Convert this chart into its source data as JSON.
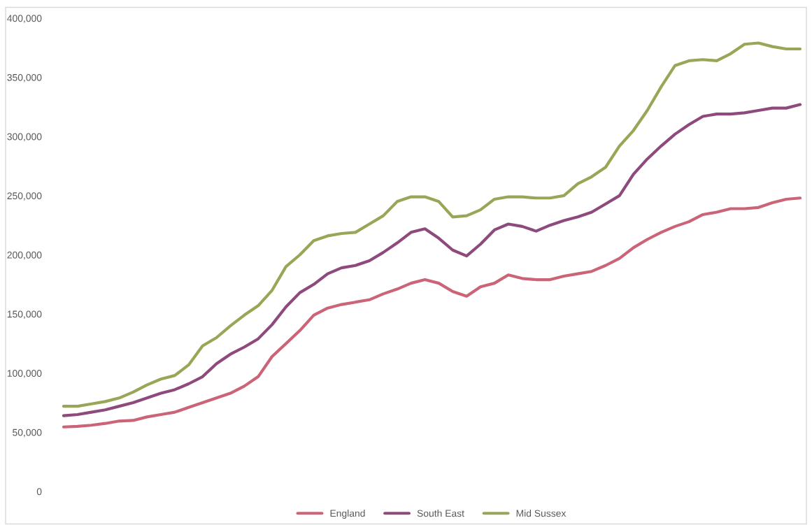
{
  "chart_data": {
    "type": "line",
    "categories": [
      null,
      null,
      null,
      null,
      null,
      null,
      null,
      null,
      null,
      null,
      null,
      null,
      null,
      null,
      null,
      null,
      null,
      null,
      null,
      null,
      null,
      null,
      null,
      null,
      null,
      null,
      null,
      null,
      null,
      null,
      null,
      null,
      null,
      null,
      null,
      null,
      null,
      null,
      null,
      null,
      null,
      null,
      null,
      null,
      null,
      null,
      null,
      null,
      null,
      null,
      null,
      null,
      null,
      null
    ],
    "series": [
      {
        "name": "England",
        "color": "#cc6478",
        "values": [
          54500,
          55000,
          56000,
          57500,
          59500,
          60000,
          63000,
          65000,
          67000,
          71000,
          75000,
          79000,
          83000,
          89000,
          97000,
          114000,
          125000,
          136000,
          149000,
          155000,
          158000,
          160000,
          162000,
          167000,
          171000,
          176000,
          179000,
          176000,
          169000,
          165000,
          173000,
          176000,
          183000,
          180000,
          179000,
          179000,
          182000,
          184000,
          186000,
          191000,
          197000,
          206000,
          213000,
          219000,
          224000,
          228000,
          234000,
          236000,
          239000,
          239000,
          240000,
          244000,
          247000,
          248000
        ]
      },
      {
        "name": "South East",
        "color": "#8e4a7c",
        "values": [
          64000,
          65000,
          67000,
          69000,
          72000,
          75000,
          79000,
          83000,
          86000,
          91000,
          97000,
          108000,
          116000,
          122000,
          129000,
          141000,
          156000,
          168000,
          175000,
          184000,
          189000,
          191000,
          195000,
          202000,
          210000,
          219000,
          222000,
          214000,
          204000,
          199000,
          209000,
          221000,
          226000,
          224000,
          220000,
          225000,
          229000,
          232000,
          236000,
          243000,
          250000,
          268000,
          281000,
          292000,
          302000,
          310000,
          317000,
          319000,
          319000,
          320000,
          322000,
          324000,
          324000,
          327000
        ]
      },
      {
        "name": "Mid Sussex",
        "color": "#9aa657",
        "values": [
          72000,
          72000,
          74000,
          76000,
          79000,
          84000,
          90000,
          95000,
          98000,
          107000,
          123000,
          130000,
          140000,
          149000,
          157000,
          170000,
          190000,
          200000,
          212000,
          216000,
          218000,
          219000,
          226000,
          233000,
          245000,
          249000,
          249000,
          245000,
          232000,
          233000,
          238000,
          247000,
          249000,
          249000,
          248000,
          248000,
          250000,
          260000,
          266000,
          274000,
          292000,
          305000,
          322000,
          342000,
          360000,
          364000,
          365000,
          364000,
          370000,
          378000,
          379000,
          376000,
          374000,
          374000
        ]
      }
    ],
    "ylim": [
      0,
      400000
    ],
    "yticks": [
      0,
      {
        "value": 50000,
        "label": "50,000"
      },
      {
        "value": 100000,
        "label": "100,000"
      },
      {
        "value": 150000,
        "label": "150,000"
      },
      {
        "value": 200000,
        "label": "200,000"
      },
      {
        "value": 250000,
        "label": "250,000"
      },
      {
        "value": 300000,
        "label": "300,000"
      },
      {
        "value": 350000,
        "label": "350,000"
      },
      {
        "value": 400000,
        "label": "400,000"
      }
    ],
    "grid": false,
    "legend": "bottom",
    "line_style": "solid",
    "marker": "none"
  }
}
